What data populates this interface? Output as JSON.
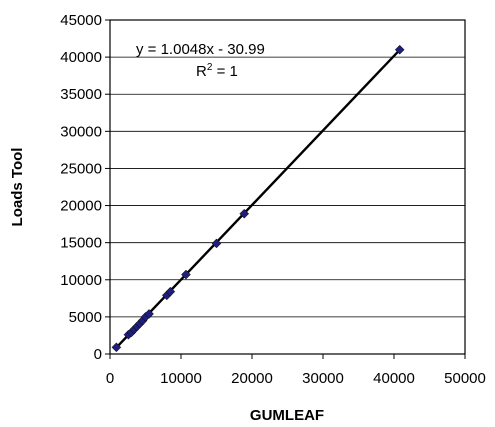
{
  "chart_data": {
    "type": "scatter",
    "title": "",
    "xlabel": "GUMLEAF",
    "ylabel": "Loads Tool",
    "xlim": [
      0,
      50000
    ],
    "ylim": [
      0,
      45000
    ],
    "xticks": [
      0,
      10000,
      20000,
      30000,
      40000,
      50000
    ],
    "yticks": [
      0,
      5000,
      10000,
      15000,
      20000,
      25000,
      30000,
      35000,
      40000,
      45000
    ],
    "x_tick_labels": [
      "0",
      "10000",
      "20000",
      "30000",
      "40000",
      "50000"
    ],
    "y_tick_labels": [
      "0",
      "5000",
      "10000",
      "15000",
      "20000",
      "25000",
      "30000",
      "35000",
      "40000",
      "45000"
    ],
    "grid": "horizontal",
    "legend": "none",
    "marker_color": "#1f1f7a",
    "series": [
      {
        "points": [
          [
            900,
            900
          ],
          [
            2600,
            2600
          ],
          [
            3000,
            2900
          ],
          [
            3400,
            3300
          ],
          [
            3800,
            3700
          ],
          [
            4200,
            4100
          ],
          [
            4600,
            4500
          ],
          [
            5000,
            5000
          ],
          [
            5500,
            5400
          ],
          [
            8000,
            7900
          ],
          [
            8500,
            8400
          ],
          [
            10700,
            10700
          ],
          [
            15000,
            14900
          ],
          [
            18900,
            18900
          ],
          [
            40800,
            41000
          ]
        ]
      }
    ],
    "trendline": {
      "slope": 1.0048,
      "intercept": -30.99,
      "x_range": [
        900,
        40800
      ]
    },
    "annotations": {
      "equation": "y = 1.0048x - 30.99",
      "r2_prefix": "R",
      "r2_sup": "2",
      "r2_suffix": " = 1"
    }
  }
}
